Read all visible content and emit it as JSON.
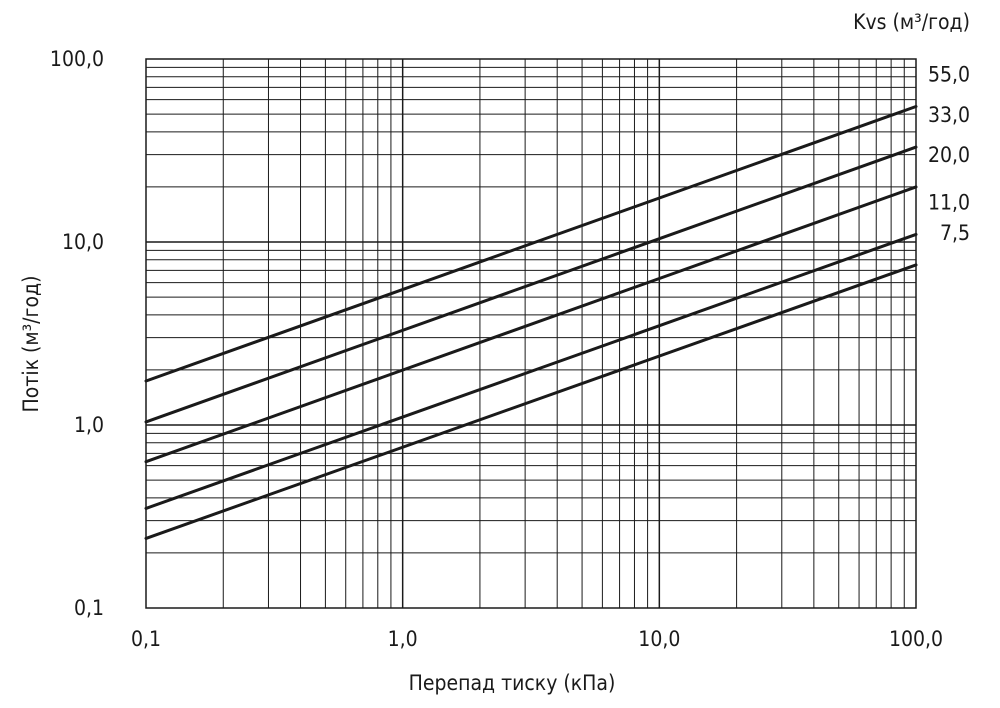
{
  "chart_data": {
    "type": "line",
    "xscale": "log",
    "yscale": "log",
    "xlim": [
      0.1,
      100
    ],
    "ylim": [
      0.1,
      100
    ],
    "xlabel": "Перепад тиску (кПа)",
    "ylabel": "Потік (м³/год)",
    "legend_title": "Kvs (м³/год)",
    "grid": true,
    "x_ticks": [
      {
        "value": 0.1,
        "label": "0,1"
      },
      {
        "value": 1,
        "label": "1,0"
      },
      {
        "value": 10,
        "label": "10,0"
      },
      {
        "value": 100,
        "label": "100,0"
      }
    ],
    "y_ticks": [
      {
        "value": 0.1,
        "label": "0,1"
      },
      {
        "value": 1,
        "label": "1,0"
      },
      {
        "value": 10,
        "label": "10,0"
      },
      {
        "value": 100,
        "label": "100,0"
      }
    ],
    "series": [
      {
        "name": "55,0",
        "x": [
          0.1,
          100
        ],
        "y": [
          1.74,
          55.0
        ]
      },
      {
        "name": "33,0",
        "x": [
          0.1,
          100
        ],
        "y": [
          1.04,
          33.0
        ]
      },
      {
        "name": "20,0",
        "x": [
          0.1,
          100
        ],
        "y": [
          0.63,
          20.0
        ]
      },
      {
        "name": "11,0",
        "x": [
          0.1,
          100
        ],
        "y": [
          0.35,
          11.0
        ]
      },
      {
        "name": "7,5",
        "x": [
          0.1,
          100
        ],
        "y": [
          0.24,
          7.5
        ]
      }
    ]
  }
}
